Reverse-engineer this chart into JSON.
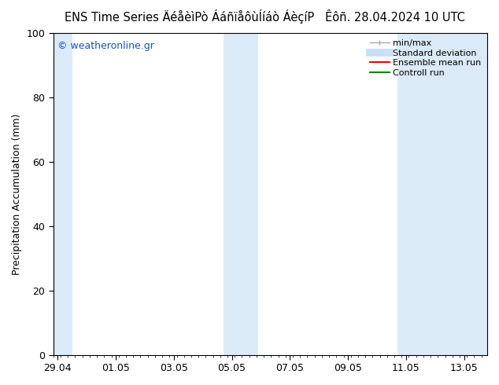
{
  "title_left": "ENS Time Series ÄéåèìPò ÁáñïåôùÍíáò ÁèçíP",
  "title_right": "Êôñ. 28.04.2024 10 UTC",
  "ylabel": "Precipitation Accumulation (mm)",
  "watermark": "© weatheronline.gr",
  "ylim": [
    0,
    100
  ],
  "yticks": [
    0,
    20,
    40,
    60,
    80,
    100
  ],
  "xtick_labels": [
    "29.04",
    "01.05",
    "03.05",
    "05.05",
    "07.05",
    "09.05",
    "11.05",
    "13.05"
  ],
  "xtick_positions": [
    0,
    2,
    4,
    6,
    8,
    10,
    12,
    14
  ],
  "xlim": [
    -0.15,
    14.8
  ],
  "shaded_regions": [
    {
      "xmin": -0.15,
      "xmax": 0.5
    },
    {
      "xmin": 5.7,
      "xmax": 6.9
    },
    {
      "xmin": 11.7,
      "xmax": 14.8
    }
  ],
  "shade_color": "#daeaf7",
  "background_color": "#ffffff",
  "watermark_color": "#1155cc",
  "title_fontsize": 10.5,
  "axis_label_fontsize": 9,
  "tick_fontsize": 9,
  "legend_fontsize": 8,
  "legend_gray_color": "#aaaaaa",
  "legend_blue_color": "#c8dff5",
  "legend_red_color": "#ff0000",
  "legend_green_color": "#008800"
}
